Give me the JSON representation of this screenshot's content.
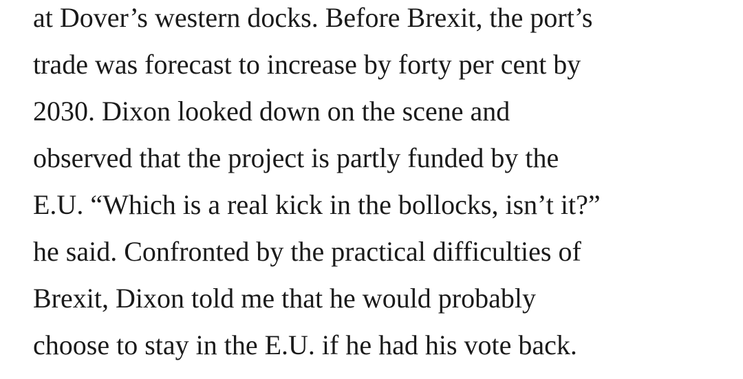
{
  "article": {
    "lines": [
      "at Dover’s western docks. Before Brexit, the port’s",
      "trade was forecast to increase by forty per cent by",
      "2030. Dixon looked down on the scene and",
      "observed that the project is partly funded by the",
      "E.U. “Which is a real kick in the bollocks, isn’t it?”",
      "he said. Confronted by the practical difficulties of",
      "Brexit, Dixon told me that he would probably",
      "choose to stay in the E.U. if he had his vote back."
    ]
  }
}
